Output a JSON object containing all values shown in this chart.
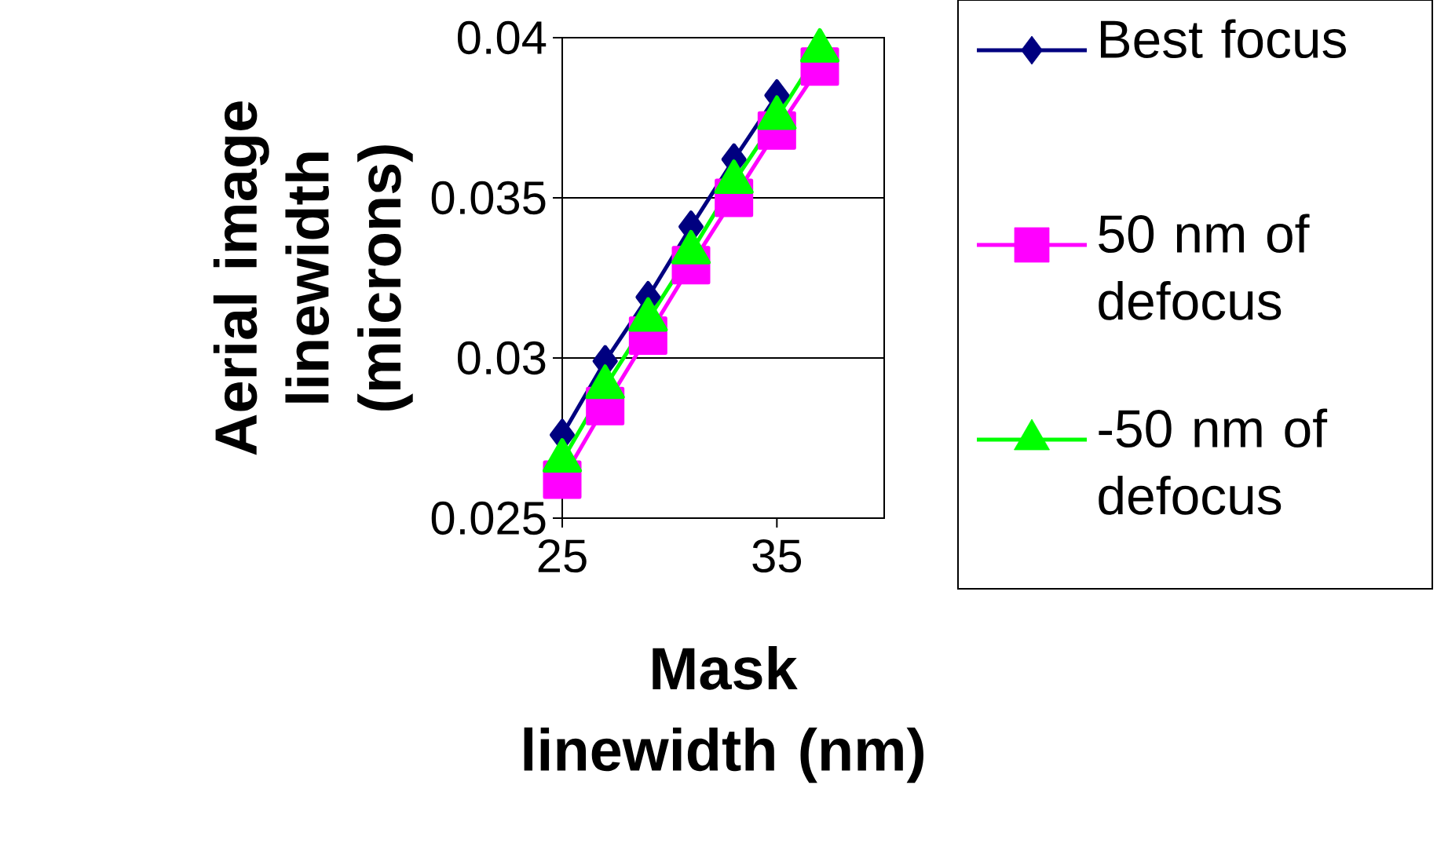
{
  "chart_data": {
    "type": "line",
    "xlabel": "Mask linewidth (nm)",
    "ylabel": "Aerial image linewidth (microns)",
    "x": [
      25,
      27,
      29,
      31,
      33,
      35,
      37
    ],
    "series": [
      {
        "name": "Best focus",
        "color": "#000080",
        "marker": "diamond",
        "values": [
          0.0276,
          0.0299,
          0.0319,
          0.0341,
          0.0362,
          0.0382,
          null
        ]
      },
      {
        "name": "50 nm of defocus",
        "color": "#ff00ff",
        "marker": "square",
        "values": [
          0.0262,
          0.0285,
          0.0307,
          0.0329,
          0.035,
          0.0371,
          0.0391
        ]
      },
      {
        "name": "-50 nm of defocus",
        "color": "#00ff00",
        "marker": "triangle",
        "values": [
          0.0268,
          0.0291,
          0.0312,
          0.0333,
          0.0355,
          0.0375,
          0.0396
        ]
      }
    ],
    "xlim": [
      25,
      40
    ],
    "xticks": [
      25,
      35
    ],
    "ylim": [
      0.025,
      0.04
    ],
    "yticks": [
      0.025,
      0.03,
      0.035,
      0.04
    ],
    "grid": "y",
    "legend": "right",
    "line_style": "solid"
  }
}
